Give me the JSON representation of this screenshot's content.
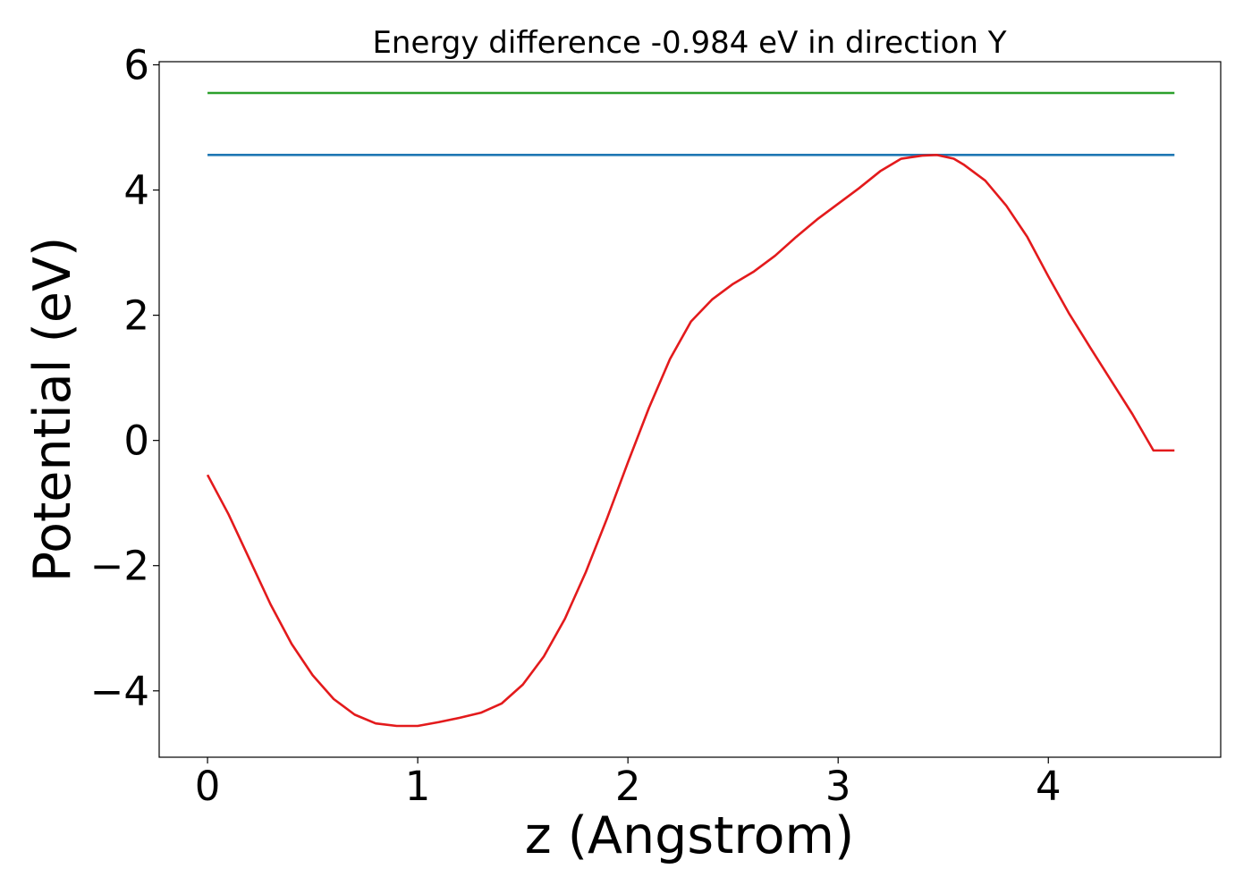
{
  "chart_data": {
    "type": "line",
    "title": "Energy difference -0.984 eV in direction Y",
    "xlabel": "z (Angstrom)",
    "ylabel": "Potential (eV)",
    "xlim": [
      -0.23,
      4.82
    ],
    "ylim": [
      -5.06,
      6.05
    ],
    "grid": false,
    "legend": "none",
    "x_ticks": [
      {
        "value": 0,
        "label": "0"
      },
      {
        "value": 1,
        "label": "1"
      },
      {
        "value": 2,
        "label": "2"
      },
      {
        "value": 3,
        "label": "3"
      },
      {
        "value": 4,
        "label": "4"
      }
    ],
    "y_ticks": [
      {
        "value": -4,
        "label": "−4"
      },
      {
        "value": -2,
        "label": "−2"
      },
      {
        "value": 0,
        "label": "0"
      },
      {
        "value": 2,
        "label": "2"
      },
      {
        "value": 4,
        "label": "4"
      },
      {
        "value": 6,
        "label": "6"
      }
    ],
    "series": [
      {
        "color": "#2ca02c",
        "x": [
          0,
          4.6
        ],
        "y": [
          5.55,
          5.55
        ]
      },
      {
        "color": "#1f77b4",
        "x": [
          0,
          4.6
        ],
        "y": [
          4.56,
          4.56
        ]
      },
      {
        "color": "#e31a1c",
        "x": [
          0,
          0.1,
          0.2,
          0.3,
          0.4,
          0.5,
          0.6,
          0.7,
          0.8,
          0.9,
          1.0,
          1.1,
          1.2,
          1.3,
          1.4,
          1.5,
          1.6,
          1.7,
          1.8,
          1.9,
          2.0,
          2.1,
          2.2,
          2.3,
          2.4,
          2.5,
          2.6,
          2.7,
          2.8,
          2.9,
          3.0,
          3.1,
          3.2,
          3.3,
          3.4,
          3.47,
          3.55,
          3.6,
          3.7,
          3.8,
          3.9,
          4.0,
          4.1,
          4.2,
          4.3,
          4.4,
          4.5,
          4.6
        ],
        "y": [
          -0.55,
          -1.18,
          -1.9,
          -2.62,
          -3.25,
          -3.75,
          -4.13,
          -4.38,
          -4.52,
          -4.56,
          -4.56,
          -4.5,
          -4.43,
          -4.35,
          -4.2,
          -3.9,
          -3.45,
          -2.85,
          -2.1,
          -1.25,
          -0.35,
          0.52,
          1.3,
          1.9,
          2.25,
          2.5,
          2.7,
          2.95,
          3.25,
          3.53,
          3.78,
          4.03,
          4.3,
          4.5,
          4.55,
          4.56,
          4.5,
          4.4,
          4.15,
          3.75,
          3.25,
          2.62,
          2.02,
          1.48,
          0.95,
          0.42,
          -0.16,
          -0.16
        ]
      }
    ]
  }
}
